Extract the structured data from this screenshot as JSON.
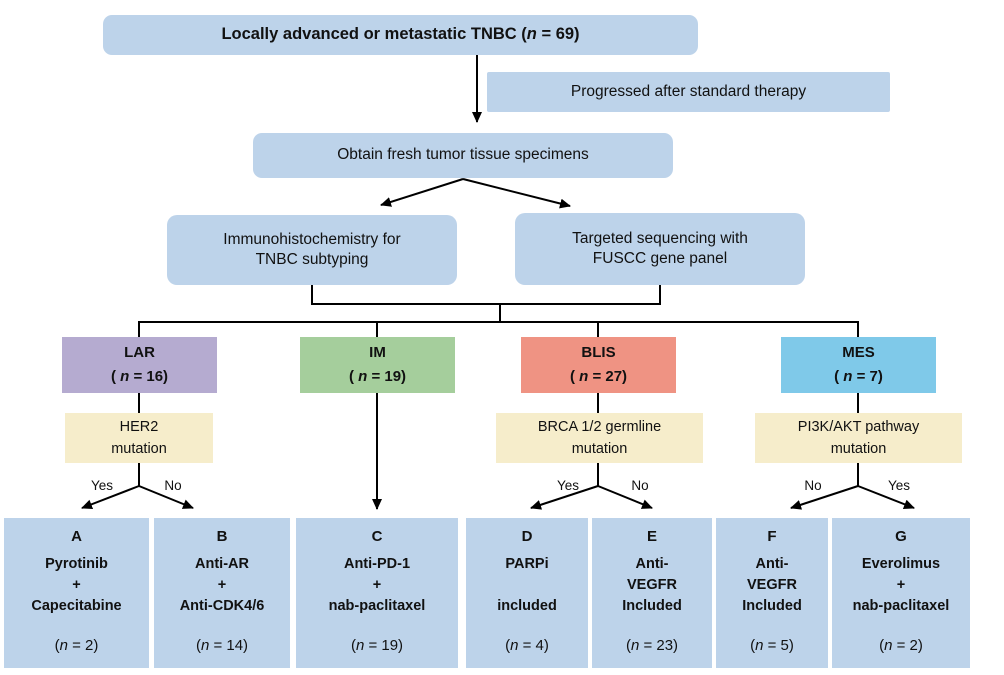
{
  "diagram": {
    "top_box": "Locally advanced or metastatic TNBC (n = 69)",
    "note_box": "Progressed after standard therapy",
    "obtain_box": "Obtain fresh tumor tissue specimens",
    "ihc_box": {
      "line1": "Immunohistochemistry for",
      "line2": "TNBC subtyping"
    },
    "seq_box": {
      "line1": "Targeted sequencing with",
      "line2": "FUSCC gene panel"
    },
    "subtypes": [
      {
        "name": "LAR",
        "count": "( n = 16)",
        "color": "#B5ABD0"
      },
      {
        "name": "IM",
        "count": "( n = 19)",
        "color": "#A5CE9C"
      },
      {
        "name": "BLIS",
        "count": "( n = 27)",
        "color": "#EF9383"
      },
      {
        "name": "MES",
        "count": "( n = 7)",
        "color": "#7FC9E9"
      }
    ],
    "conditions": [
      {
        "line1": "HER2",
        "line2": "mutation"
      },
      {
        "line1": "BRCA 1/2 germline",
        "line2": "mutation"
      },
      {
        "line1": "PI3K/AKT pathway",
        "line2": "mutation"
      }
    ],
    "branch_labels": [
      {
        "left": "Yes",
        "right": "No"
      },
      {
        "left": "Yes",
        "right": "No"
      },
      {
        "left": "No",
        "right": "Yes"
      }
    ],
    "arms": [
      {
        "letter": "A",
        "lines": [
          "Pyrotinib",
          "+",
          "Capecitabine"
        ],
        "count": "(n = 2)"
      },
      {
        "letter": "B",
        "lines": [
          "Anti-AR",
          "+",
          "Anti-CDK4/6"
        ],
        "count": "(n = 14)"
      },
      {
        "letter": "C",
        "lines": [
          "Anti-PD-1",
          "+",
          "nab-paclitaxel"
        ],
        "count": "(n = 19)"
      },
      {
        "letter": "D",
        "lines": [
          "PARPi",
          "",
          "included"
        ],
        "count": "(n = 4)"
      },
      {
        "letter": "E",
        "lines": [
          "Anti-",
          "VEGFR",
          "Included"
        ],
        "count": "(n = 23)"
      },
      {
        "letter": "F",
        "lines": [
          "Anti-",
          "VEGFR",
          "Included"
        ],
        "count": "(n = 5)"
      },
      {
        "letter": "G",
        "lines": [
          "Everolimus",
          "+",
          "nab-paclitaxel"
        ],
        "count": "(n = 2)"
      }
    ],
    "colors": {
      "box_blue": "#BDD3EA",
      "condition_cream": "#F6EDCB",
      "line_black": "#000000"
    }
  }
}
